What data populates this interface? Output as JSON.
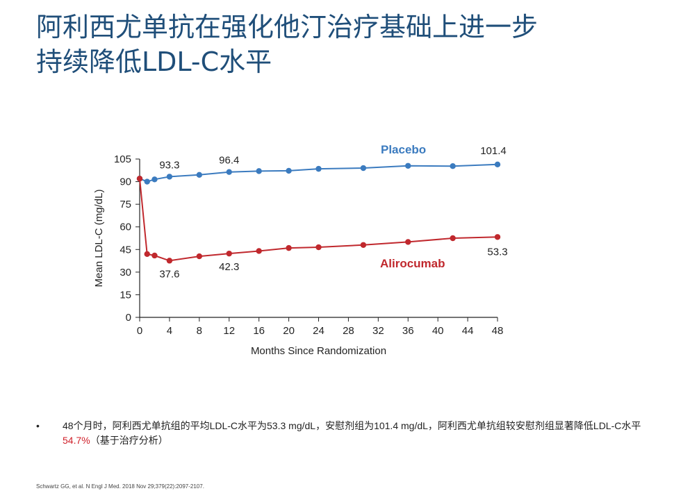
{
  "title": {
    "line1": "阿利西尤单抗在强化他汀治疗基础上进一步",
    "line2": "持续降低LDL-C水平"
  },
  "chart_data": {
    "type": "line",
    "xlabel": "Months Since Randomization",
    "ylabel": "Mean LDL-C (mg/dL)",
    "xlim": [
      0,
      48
    ],
    "ylim": [
      0,
      105
    ],
    "xticks": [
      0,
      4,
      8,
      12,
      16,
      20,
      24,
      28,
      32,
      36,
      40,
      44,
      48
    ],
    "yticks": [
      0,
      15,
      30,
      45,
      60,
      75,
      90,
      105
    ],
    "grid": false,
    "series": [
      {
        "name": "Placebo",
        "color": "#3b7bbf",
        "x": [
          0,
          1,
          2,
          4,
          8,
          12,
          16,
          20,
          24,
          30,
          36,
          42,
          48
        ],
        "y": [
          92,
          90,
          91.5,
          93.3,
          94.5,
          96.4,
          97,
          97.2,
          98.5,
          99,
          100.5,
          100.3,
          101.4
        ]
      },
      {
        "name": "Alirocumab",
        "color": "#c0282d",
        "x": [
          0,
          1,
          2,
          4,
          8,
          12,
          16,
          20,
          24,
          30,
          36,
          42,
          48
        ],
        "y": [
          92,
          42,
          41,
          37.6,
          40.5,
          42.3,
          44,
          46,
          46.5,
          48,
          50,
          52.5,
          53.3
        ]
      }
    ],
    "annotations": [
      {
        "series": 0,
        "index": 3,
        "text": "93.3"
      },
      {
        "series": 0,
        "index": 5,
        "text": "96.4"
      },
      {
        "series": 0,
        "index": 12,
        "text": "101.4"
      },
      {
        "series": 1,
        "index": 3,
        "text": "37.6"
      },
      {
        "series": 1,
        "index": 5,
        "text": "42.3"
      },
      {
        "series": 1,
        "index": 12,
        "text": "53.3"
      }
    ]
  },
  "bullet": {
    "marker": "•",
    "text_before": "48个月时，阿利西尤单抗组的平均LDL-C水平为53.3 mg/dL，安慰剂组为101.4 mg/dL，阿利西尤单抗组较安慰剂组显著降低LDL-C水平 ",
    "highlight": "54.7%",
    "text_after": "（基于治疗分析）",
    "highlight_color": "#d0202a"
  },
  "citation": "Schwartz GG, et al. N Engl J Med. 2018 Nov 29;379(22):2097-2107."
}
